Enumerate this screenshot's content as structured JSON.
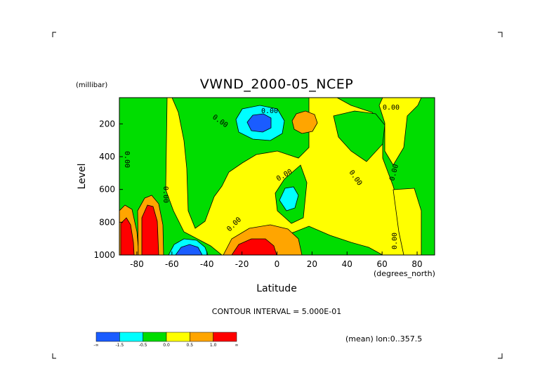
{
  "chart_data": {
    "type": "contour",
    "title": "VWND_2000-05_NCEP",
    "xlabel": "Latitude",
    "ylabel": "Level",
    "x_units": "(degrees_north)",
    "y_units": "(millibar)",
    "xlim": [
      -90,
      90
    ],
    "ylim": [
      1000,
      40
    ],
    "x_ticks": [
      "-80",
      "-60",
      "-40",
      "-20",
      "0",
      "20",
      "40",
      "60",
      "80"
    ],
    "y_ticks": [
      "200",
      "400",
      "600",
      "800",
      "1000"
    ],
    "contour_interval_text": "CONTOUR INTERVAL = 5.000E-01",
    "contour_label": "0.00",
    "subset_note": "(mean) lon:0..357.5",
    "legend": {
      "levels": [
        "-∞",
        "-1.5",
        "-0.5",
        "0.0",
        "0.5",
        "1.0",
        "∞"
      ],
      "colors": [
        "#1a5cff",
        "#00ffff",
        "#00dd00",
        "#ffff00",
        "#ffa500",
        "#ff0000"
      ]
    },
    "features": [
      {
        "name": "negative-center-upper",
        "lat": -12,
        "level": 180,
        "sign": "negative"
      },
      {
        "name": "positive-center-upper",
        "lat": 15,
        "level": 160,
        "sign": "positive"
      },
      {
        "name": "positive-jet-surface-south",
        "lat": -88,
        "level": 900,
        "sign": "positive"
      },
      {
        "name": "positive-jet-surface-south-2",
        "lat": -73,
        "level": 850,
        "sign": "positive"
      },
      {
        "name": "negative-center-surface",
        "lat": -54,
        "level": 960,
        "sign": "negative"
      },
      {
        "name": "positive-center-surface",
        "lat": -12,
        "level": 950,
        "sign": "positive"
      },
      {
        "name": "negative-small",
        "lat": 6,
        "level": 650,
        "sign": "negative"
      }
    ]
  }
}
